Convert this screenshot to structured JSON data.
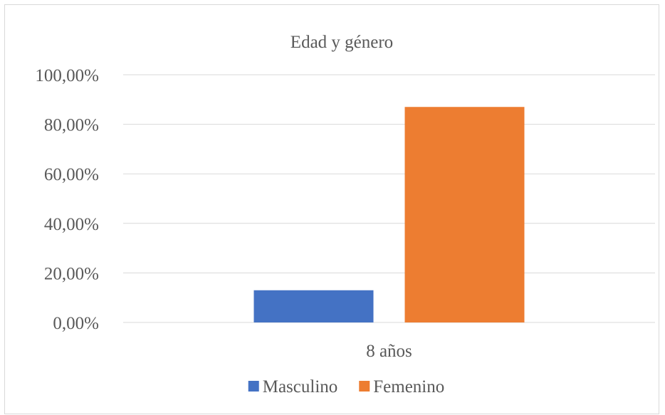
{
  "chart_data": {
    "type": "bar",
    "title": "Edad y género",
    "categories": [
      "8 años"
    ],
    "series": [
      {
        "name": "Masculino",
        "values": [
          0.13
        ],
        "color": "#4472c4"
      },
      {
        "name": "Femenino",
        "values": [
          0.87
        ],
        "color": "#ed7d31"
      }
    ],
    "ylim": [
      0,
      1
    ],
    "yticks": [
      0,
      0.2,
      0.4,
      0.6,
      0.8,
      1
    ],
    "ytick_labels": [
      "0,00%",
      "20,00%",
      "40,00%",
      "60,00%",
      "80,00%",
      "100,00%"
    ],
    "grid": true,
    "gridline_color": "#d9d9d9",
    "legend_position": "bottom"
  }
}
